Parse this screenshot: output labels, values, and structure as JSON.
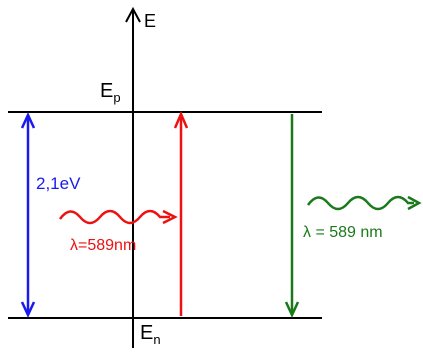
{
  "axis": {
    "energy_label": "E"
  },
  "levels": {
    "upper": {
      "label_main": "E",
      "label_sub": "p"
    },
    "lower": {
      "label_main": "E",
      "label_sub": "n"
    }
  },
  "gap": {
    "label": "2,1eV"
  },
  "absorbed_photon": {
    "label": "λ=589nm"
  },
  "emitted_photon": {
    "label": "λ = 589 nm"
  },
  "colors": {
    "axis": "#000000",
    "gap_arrow": "#1a1aee",
    "absorption": "#ee1111",
    "emission": "#1a7a1a"
  }
}
